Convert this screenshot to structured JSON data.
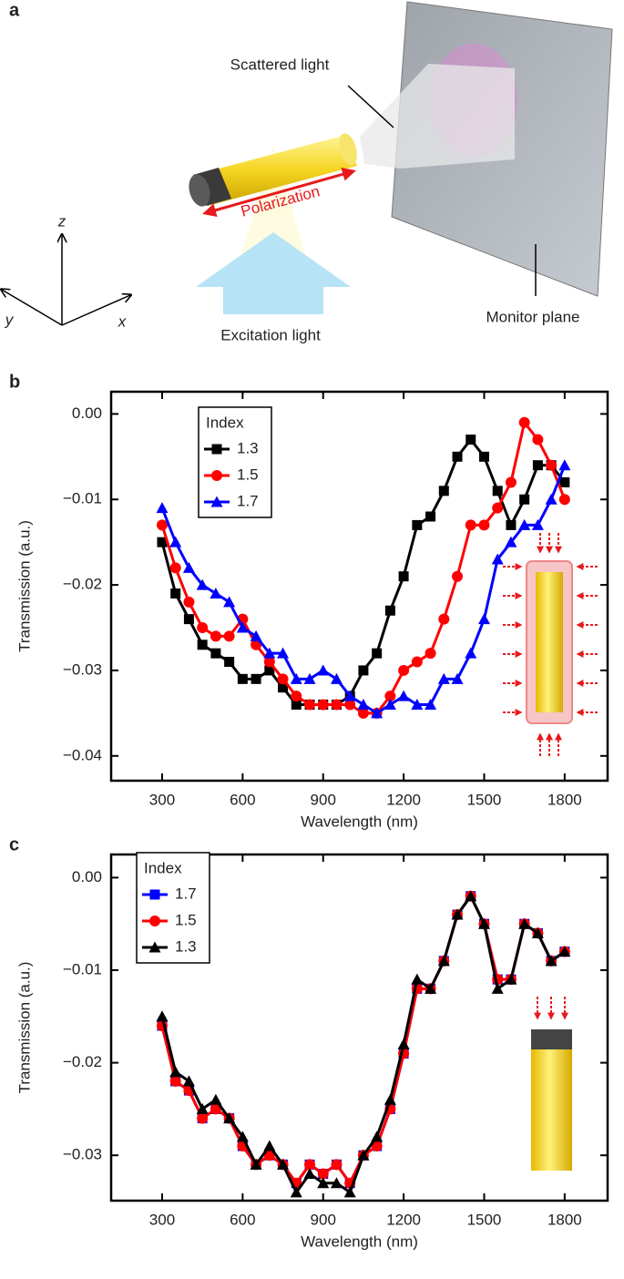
{
  "panel_a": {
    "label": "a",
    "scattered": "Scattered light",
    "polarization": "Polarization",
    "excitation": "Excitation light",
    "monitor": "Monitor plane",
    "axis_z": "z",
    "axis_y": "y",
    "axis_x": "x"
  },
  "chart_data": [
    {
      "type": "line",
      "panel": "b",
      "xlabel": "Wavelength (nm)",
      "ylabel": "Transmission (a.u.)",
      "legend_title": "Index",
      "legend": "upper left",
      "x": [
        300,
        350,
        400,
        450,
        500,
        550,
        600,
        650,
        700,
        750,
        800,
        850,
        900,
        950,
        1000,
        1050,
        1100,
        1150,
        1200,
        1250,
        1300,
        1350,
        1400,
        1450,
        1500,
        1550,
        1600,
        1650,
        1700,
        1750,
        1800
      ],
      "series": [
        {
          "name": "1.3",
          "color": "#000000",
          "marker": "square",
          "values": [
            -0.015,
            -0.021,
            -0.024,
            -0.027,
            -0.028,
            -0.029,
            -0.031,
            -0.031,
            -0.03,
            -0.032,
            -0.034,
            -0.034,
            -0.034,
            -0.034,
            -0.033,
            -0.03,
            -0.028,
            -0.023,
            -0.019,
            -0.013,
            -0.012,
            -0.009,
            -0.005,
            -0.003,
            -0.005,
            -0.009,
            -0.013,
            -0.01,
            -0.006,
            -0.006,
            -0.008
          ]
        },
        {
          "name": "1.5",
          "color": "#ff0000",
          "marker": "circle",
          "values": [
            -0.013,
            -0.018,
            -0.022,
            -0.025,
            -0.026,
            -0.026,
            -0.024,
            -0.027,
            -0.029,
            -0.031,
            -0.033,
            -0.034,
            -0.034,
            -0.034,
            -0.034,
            -0.035,
            -0.035,
            -0.033,
            -0.03,
            -0.029,
            -0.028,
            -0.024,
            -0.019,
            -0.013,
            -0.013,
            -0.011,
            -0.008,
            -0.001,
            -0.003,
            -0.006,
            -0.01
          ]
        },
        {
          "name": "1.7",
          "color": "#0000ff",
          "marker": "triangle",
          "values": [
            -0.011,
            -0.015,
            -0.018,
            -0.02,
            -0.021,
            -0.022,
            -0.025,
            -0.026,
            -0.028,
            -0.028,
            -0.031,
            -0.031,
            -0.03,
            -0.031,
            -0.033,
            -0.034,
            -0.035,
            -0.034,
            -0.033,
            -0.034,
            -0.034,
            -0.031,
            -0.031,
            -0.028,
            -0.024,
            -0.017,
            -0.015,
            -0.013,
            -0.013,
            -0.01,
            -0.006
          ]
        }
      ],
      "xlim": [
        110,
        1960
      ],
      "ylim": [
        -0.0429,
        0.0026
      ],
      "xticks": [
        300,
        600,
        900,
        1200,
        1500,
        1800
      ],
      "yticks": [
        {
          "value": -0.04,
          "label": "−0.04"
        },
        {
          "value": -0.03,
          "label": "−0.03"
        },
        {
          "value": -0.02,
          "label": "−0.02"
        },
        {
          "value": -0.01,
          "label": "−0.01"
        },
        {
          "value": 0,
          "label": "0.00"
        }
      ]
    },
    {
      "type": "line",
      "panel": "c",
      "xlabel": "Wavelength (nm)",
      "ylabel": "Transmission (a.u.)",
      "legend_title": "Index",
      "legend": "upper left",
      "x": [
        300,
        350,
        400,
        450,
        500,
        550,
        600,
        650,
        700,
        750,
        800,
        850,
        900,
        950,
        1000,
        1050,
        1100,
        1150,
        1200,
        1250,
        1300,
        1350,
        1400,
        1450,
        1500,
        1550,
        1600,
        1650,
        1700,
        1750,
        1800
      ],
      "series": [
        {
          "name": "1.7",
          "color": "#0000ff",
          "marker": "square",
          "values": [
            -0.016,
            -0.022,
            -0.023,
            -0.026,
            -0.025,
            -0.026,
            -0.029,
            -0.031,
            -0.03,
            -0.031,
            -0.033,
            -0.031,
            -0.032,
            -0.031,
            -0.033,
            -0.03,
            -0.029,
            -0.025,
            -0.019,
            -0.012,
            -0.012,
            -0.009,
            -0.004,
            -0.002,
            -0.005,
            -0.011,
            -0.011,
            -0.005,
            -0.006,
            -0.009,
            -0.008
          ]
        },
        {
          "name": "1.5",
          "color": "#ff0000",
          "marker": "circle",
          "values": [
            -0.016,
            -0.022,
            -0.023,
            -0.026,
            -0.025,
            -0.026,
            -0.029,
            -0.031,
            -0.03,
            -0.031,
            -0.033,
            -0.031,
            -0.032,
            -0.031,
            -0.033,
            -0.03,
            -0.029,
            -0.025,
            -0.019,
            -0.012,
            -0.012,
            -0.009,
            -0.004,
            -0.002,
            -0.005,
            -0.011,
            -0.011,
            -0.005,
            -0.006,
            -0.009,
            -0.008
          ]
        },
        {
          "name": "1.3",
          "color": "#000000",
          "marker": "triangle",
          "values": [
            -0.015,
            -0.021,
            -0.022,
            -0.025,
            -0.024,
            -0.026,
            -0.028,
            -0.031,
            -0.029,
            -0.031,
            -0.034,
            -0.032,
            -0.033,
            -0.033,
            -0.034,
            -0.03,
            -0.028,
            -0.024,
            -0.018,
            -0.011,
            -0.012,
            -0.009,
            -0.004,
            -0.002,
            -0.005,
            -0.012,
            -0.011,
            -0.005,
            -0.006,
            -0.009,
            -0.008
          ]
        }
      ],
      "xlim": [
        110,
        1960
      ],
      "ylim": [
        -0.0349,
        0.0025
      ],
      "xticks": [
        300,
        600,
        900,
        1200,
        1500,
        1800
      ],
      "yticks": [
        {
          "value": -0.03,
          "label": "−0.03"
        },
        {
          "value": -0.02,
          "label": "−0.02"
        },
        {
          "value": -0.01,
          "label": "−0.01"
        },
        {
          "value": 0,
          "label": "0.00"
        }
      ]
    }
  ]
}
